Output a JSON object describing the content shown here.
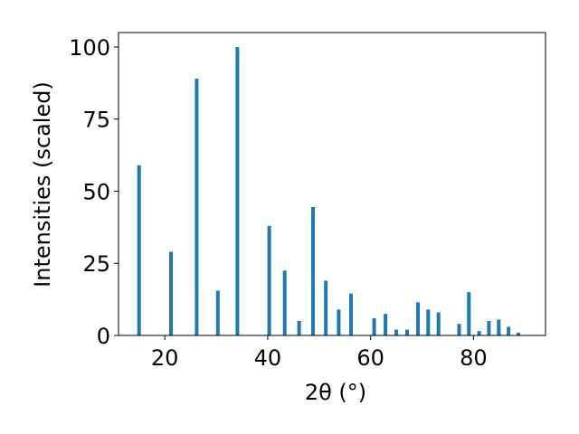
{
  "chart_data": {
    "type": "bar",
    "xlabel": "2θ (°)",
    "ylabel": "Intensities (scaled)",
    "xlim": [
      11,
      94
    ],
    "ylim": [
      0,
      105
    ],
    "xticks": [
      20,
      40,
      60,
      80
    ],
    "yticks": [
      0,
      25,
      50,
      75,
      100
    ],
    "grid": false,
    "bar_color": "#1f77b4",
    "series": [
      {
        "x": [
          15.0,
          21.2,
          26.2,
          30.3,
          34.1,
          40.3,
          43.3,
          46.1,
          48.8,
          51.3,
          53.8,
          56.2,
          60.7,
          62.9,
          65.0,
          67.1,
          69.2,
          71.2,
          73.2,
          77.2,
          79.1,
          81.1,
          83.0,
          84.9,
          86.8,
          88.7,
          90.6
        ],
        "values": [
          59,
          29,
          89,
          15.5,
          100,
          38,
          22.5,
          5,
          44.5,
          19,
          9,
          14.5,
          6,
          7.5,
          2,
          2,
          11.5,
          9,
          8,
          4,
          15,
          1.5,
          5,
          5.5,
          3,
          1,
          0
        ]
      }
    ]
  }
}
